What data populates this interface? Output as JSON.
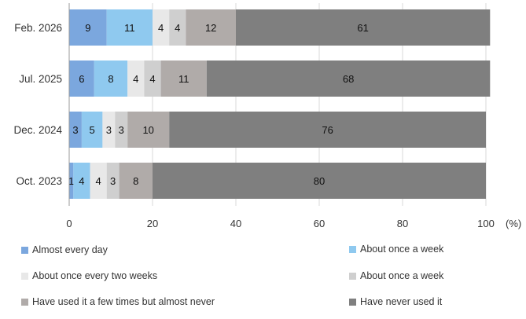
{
  "chart_data": {
    "type": "bar",
    "orientation": "horizontal",
    "stacked": true,
    "categories": [
      "Feb. 2026",
      "Jul. 2025",
      "Dec. 2024",
      "Oct. 2023"
    ],
    "series": [
      {
        "name": "Almost every day",
        "color": "#7BA7DE",
        "values": [
          9,
          6,
          3,
          1
        ]
      },
      {
        "name": "About once a week",
        "color": "#8FC9EF",
        "values": [
          11,
          8,
          5,
          4
        ]
      },
      {
        "name": "About once every two weeks",
        "color": "#E8E8E8",
        "values": [
          4,
          4,
          3,
          4
        ]
      },
      {
        "name": "About once a week",
        "color": "#CFCFCF",
        "values": [
          4,
          4,
          3,
          3
        ]
      },
      {
        "name": "Have used it a few times but almost never",
        "color": "#B0ABA9",
        "values": [
          12,
          11,
          10,
          8
        ]
      },
      {
        "name": "Have never used it",
        "color": "#7F7F7F",
        "values": [
          61,
          68,
          76,
          80
        ]
      }
    ],
    "xlim": [
      0,
      100
    ],
    "xticks": [
      "0",
      "20",
      "40",
      "60",
      "80",
      "100"
    ],
    "unit_label": "(%)",
    "grid": true,
    "legend_position": "bottom"
  }
}
